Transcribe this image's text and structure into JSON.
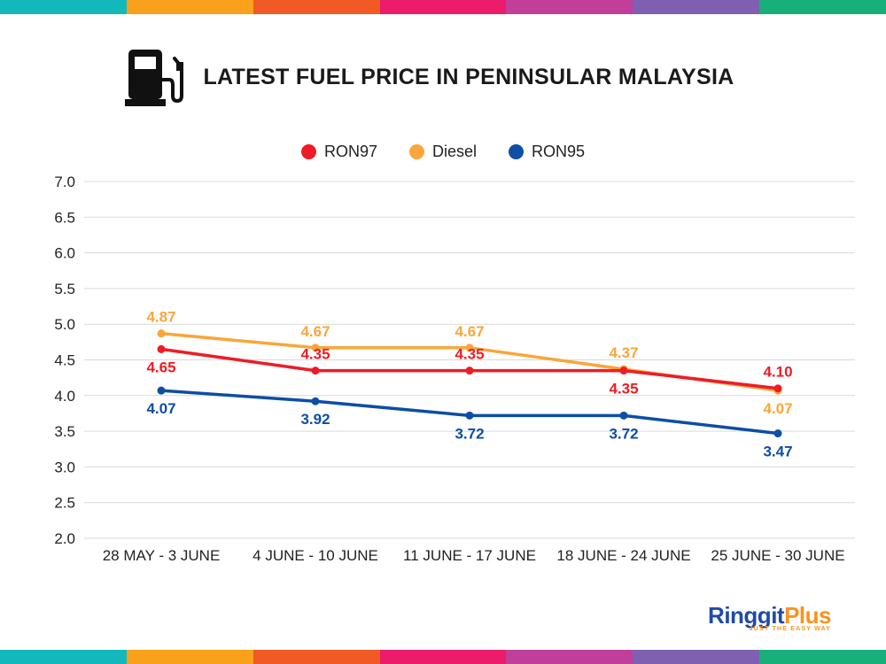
{
  "colors": {
    "stripe": [
      "#13b8bd",
      "#f9a11b",
      "#f15a24",
      "#ec1c6b",
      "#c13e9a",
      "#7e5fb0",
      "#17b07b"
    ],
    "ron97": "#ee1c25",
    "diesel": "#f9a63a",
    "ron95": "#0d4ea6"
  },
  "header": {
    "icon": "fuel-pump-icon",
    "title": "LATEST FUEL PRICE IN PENINSULAR MALAYSIA"
  },
  "brand": {
    "name_part1": "Ringgit",
    "name_part2": "Plus",
    "tagline": "JUST THE EASY WAY"
  },
  "chart_data": {
    "type": "line",
    "categories": [
      "28 MAY - 3 JUNE",
      "4 JUNE - 10 JUNE",
      "11 JUNE - 17 JUNE",
      "18 JUNE - 24 JUNE",
      "25 JUNE - 30 JUNE"
    ],
    "series": [
      {
        "name": "RON97",
        "color": "#ee1c25",
        "values": [
          4.65,
          4.35,
          4.35,
          4.35,
          4.1
        ],
        "labels": [
          "4.65",
          "4.35",
          "4.35",
          "4.35",
          "4.10"
        ],
        "label_pos": [
          "below",
          "above",
          "above",
          "below",
          "above"
        ]
      },
      {
        "name": "Diesel",
        "color": "#f9a63a",
        "values": [
          4.87,
          4.67,
          4.67,
          4.37,
          4.07
        ],
        "labels": [
          "4.87",
          "4.67",
          "4.67",
          "4.37",
          "4.07"
        ],
        "label_pos": [
          "above",
          "above",
          "above",
          "above",
          "below"
        ]
      },
      {
        "name": "RON95",
        "color": "#0d4ea6",
        "values": [
          4.07,
          3.92,
          3.72,
          3.72,
          3.47
        ],
        "labels": [
          "4.07",
          "3.92",
          "3.72",
          "3.72",
          "3.47"
        ],
        "label_pos": [
          "below",
          "below",
          "below",
          "below",
          "below"
        ]
      }
    ],
    "ylim": [
      2.0,
      7.0
    ],
    "yticks": [
      "2.0",
      "2.5",
      "3.0",
      "3.5",
      "4.0",
      "4.5",
      "5.0",
      "5.5",
      "6.0",
      "6.5",
      "7.0"
    ],
    "grid": true,
    "legend": "top-center",
    "title": "LATEST FUEL PRICE IN PENINSULAR MALAYSIA",
    "xlabel": "",
    "ylabel": ""
  }
}
